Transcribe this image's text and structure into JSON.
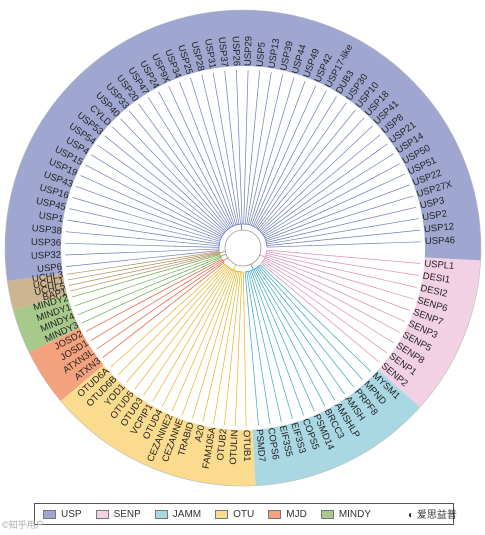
{
  "diagram": {
    "families": [
      {
        "name": "USP",
        "color": "#9fa7d1",
        "line": "#6f7fb8"
      },
      {
        "name": "SENP",
        "color": "#f3d1e4",
        "line": "#d98fb8"
      },
      {
        "name": "JAMM",
        "color": "#a9d8e4",
        "line": "#3aa7bf"
      },
      {
        "name": "OTU",
        "color": "#fbdc8f",
        "line": "#e8b32a"
      },
      {
        "name": "MJD",
        "color": "#f4a27d",
        "line": "#e0603a"
      },
      {
        "name": "MINDY",
        "color": "#a8c98c",
        "line": "#6da94b"
      },
      {
        "name": "UCHL",
        "color": "#cdb58f",
        "line": "#b08c5a"
      }
    ],
    "sectors": [
      {
        "family": "USP",
        "a0": 172,
        "a1": 360
      },
      {
        "family": "USP",
        "a0": 0,
        "a1": 3
      },
      {
        "family": "SENP",
        "a0": 3,
        "a1": 42
      },
      {
        "family": "JAMM",
        "a0": 42,
        "a1": 87
      },
      {
        "family": "OTU",
        "a0": 87,
        "a1": 140
      },
      {
        "family": "MJD",
        "a0": 140,
        "a1": 154
      },
      {
        "family": "MINDY",
        "a0": 154,
        "a1": 165
      },
      {
        "family": "UCHL",
        "a0": 165,
        "a1": 172
      }
    ],
    "leaves": [
      {
        "label": "USP6",
        "family": "USP"
      },
      {
        "label": "USP32",
        "family": "USP"
      },
      {
        "label": "USP36",
        "family": "USP"
      },
      {
        "label": "USP38",
        "family": "USP"
      },
      {
        "label": "USP1",
        "family": "USP"
      },
      {
        "label": "USP45",
        "family": "USP"
      },
      {
        "label": "USP16",
        "family": "USP"
      },
      {
        "label": "USP43",
        "family": "USP"
      },
      {
        "label": "USP19",
        "family": "USP"
      },
      {
        "label": "USP15",
        "family": "USP"
      },
      {
        "label": "USP4",
        "family": "USP"
      },
      {
        "label": "USP54",
        "family": "USP"
      },
      {
        "label": "USP53",
        "family": "USP"
      },
      {
        "label": "CYLD",
        "family": "USP"
      },
      {
        "label": "USP40",
        "family": "USP"
      },
      {
        "label": "USP33",
        "family": "USP"
      },
      {
        "label": "USP20",
        "family": "USP"
      },
      {
        "label": "USP47",
        "family": "USP"
      },
      {
        "label": "USP24",
        "family": "USP"
      },
      {
        "label": "USP9X",
        "family": "USP"
      },
      {
        "label": "USP34",
        "family": "USP"
      },
      {
        "label": "USP25",
        "family": "USP"
      },
      {
        "label": "USP28",
        "family": "USP"
      },
      {
        "label": "USP31",
        "family": "USP"
      },
      {
        "label": "USP37",
        "family": "USP"
      },
      {
        "label": "USP26",
        "family": "USP"
      },
      {
        "label": "USP29",
        "family": "USP"
      },
      {
        "label": "USP5",
        "family": "USP"
      },
      {
        "label": "USP13",
        "family": "USP"
      },
      {
        "label": "USP39",
        "family": "USP"
      },
      {
        "label": "USP44",
        "family": "USP"
      },
      {
        "label": "USP49",
        "family": "USP"
      },
      {
        "label": "USP42",
        "family": "USP"
      },
      {
        "label": "USP17-like",
        "family": "USP"
      },
      {
        "label": "DUB3",
        "family": "USP"
      },
      {
        "label": "USP30",
        "family": "USP"
      },
      {
        "label": "USP10",
        "family": "USP"
      },
      {
        "label": "USP18",
        "family": "USP"
      },
      {
        "label": "USP41",
        "family": "USP"
      },
      {
        "label": "USP8",
        "family": "USP"
      },
      {
        "label": "USP21",
        "family": "USP"
      },
      {
        "label": "USP14",
        "family": "USP"
      },
      {
        "label": "USP50",
        "family": "USP"
      },
      {
        "label": "USP51",
        "family": "USP"
      },
      {
        "label": "USP22",
        "family": "USP"
      },
      {
        "label": "USP27X",
        "family": "USP"
      },
      {
        "label": "USP3",
        "family": "USP"
      },
      {
        "label": "USP2",
        "family": "USP"
      },
      {
        "label": "USP12",
        "family": "USP"
      },
      {
        "label": "USP46",
        "family": "USP"
      },
      {
        "label": "USPL1",
        "family": "SENP"
      },
      {
        "label": "DESI1",
        "family": "SENP"
      },
      {
        "label": "DESI2",
        "family": "SENP"
      },
      {
        "label": "SENP6",
        "family": "SENP"
      },
      {
        "label": "SENP7",
        "family": "SENP"
      },
      {
        "label": "SENP3",
        "family": "SENP"
      },
      {
        "label": "SENP5",
        "family": "SENP"
      },
      {
        "label": "SENP8",
        "family": "SENP"
      },
      {
        "label": "SENP1",
        "family": "SENP"
      },
      {
        "label": "SENP2",
        "family": "SENP"
      },
      {
        "label": "MYSM1",
        "family": "JAMM"
      },
      {
        "label": "MPND",
        "family": "JAMM"
      },
      {
        "label": "PRPF8",
        "family": "JAMM"
      },
      {
        "label": "AMSH",
        "family": "JAMM"
      },
      {
        "label": "AMSHLP",
        "family": "JAMM"
      },
      {
        "label": "BRCC3",
        "family": "JAMM"
      },
      {
        "label": "PSMD14",
        "family": "JAMM"
      },
      {
        "label": "COPS5",
        "family": "JAMM"
      },
      {
        "label": "EIF3S3",
        "family": "JAMM"
      },
      {
        "label": "EIF3S5",
        "family": "JAMM"
      },
      {
        "label": "COPS6",
        "family": "JAMM"
      },
      {
        "label": "PSMD7",
        "family": "JAMM"
      },
      {
        "label": "OTUB1",
        "family": "OTU"
      },
      {
        "label": "OTULIN",
        "family": "OTU"
      },
      {
        "label": "OTUB2",
        "family": "OTU"
      },
      {
        "label": "FAM105A",
        "family": "OTU"
      },
      {
        "label": "A20",
        "family": "OTU"
      },
      {
        "label": "TRABID",
        "family": "OTU"
      },
      {
        "label": "CEZANNE",
        "family": "OTU"
      },
      {
        "label": "CEZANNE2",
        "family": "OTU"
      },
      {
        "label": "OTUD4",
        "family": "OTU"
      },
      {
        "label": "VCPIP1",
        "family": "OTU"
      },
      {
        "label": "OTUD3",
        "family": "OTU"
      },
      {
        "label": "OTUD5",
        "family": "OTU"
      },
      {
        "label": "YOD1",
        "family": "OTU"
      },
      {
        "label": "OTUD6B",
        "family": "OTU"
      },
      {
        "label": "OTUD6A",
        "family": "OTU"
      },
      {
        "label": "ATXN3",
        "family": "MJD"
      },
      {
        "label": "ATXN3L",
        "family": "MJD"
      },
      {
        "label": "JOSD1",
        "family": "MJD"
      },
      {
        "label": "JOSD2",
        "family": "MJD"
      },
      {
        "label": "MINDY3",
        "family": "MINDY"
      },
      {
        "label": "MINDY4",
        "family": "MINDY"
      },
      {
        "label": "MINDY1",
        "family": "MINDY"
      },
      {
        "label": "MINDY2",
        "family": "MINDY"
      },
      {
        "label": "BAP1",
        "family": "UCHL"
      },
      {
        "label": "UCHL5",
        "family": "UCHL"
      },
      {
        "label": "UCHL1",
        "family": "UCHL"
      },
      {
        "label": "UCHL3",
        "family": "UCHL"
      }
    ]
  },
  "legend": {
    "items": [
      {
        "label": "USP",
        "color": "#9fa7d1"
      },
      {
        "label": "SENP",
        "color": "#f3d1e4"
      },
      {
        "label": "JAMM",
        "color": "#a9d8e4"
      },
      {
        "label": "OTU",
        "color": "#fbdc8f"
      },
      {
        "label": "MJD",
        "color": "#f4a27d"
      },
      {
        "label": "MINDY",
        "color": "#a8c98c"
      }
    ]
  },
  "watermark": {
    "left": "©知乎用户",
    "right": "爱思益普"
  }
}
